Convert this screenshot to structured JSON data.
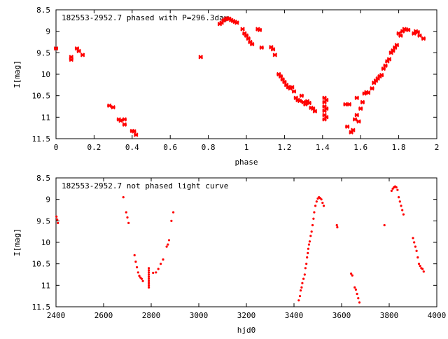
{
  "chart_data": [
    {
      "type": "scatter",
      "title": "182553-2952.7 phased with P=296.3day",
      "xlabel": "phase",
      "ylabel": "I[mag]",
      "xlim": [
        0,
        2
      ],
      "ylim": [
        8.5,
        11.5
      ],
      "y_inverted": true,
      "grid": false,
      "marker": "cross",
      "color": "#ff0000",
      "x_ticks": [
        "0",
        "0.2",
        "0.4",
        "0.6",
        "0.8",
        "1",
        "1.2",
        "1.4",
        "1.6",
        "1.8",
        "2"
      ],
      "y_ticks": [
        "8.5",
        "9",
        "9.5",
        "10",
        "10.5",
        "11",
        "11.5"
      ],
      "points": [
        [
          0.0,
          9.4
        ],
        [
          0.08,
          9.6
        ],
        [
          0.08,
          9.66
        ],
        [
          0.11,
          9.4
        ],
        [
          0.12,
          9.46
        ],
        [
          0.14,
          9.55
        ],
        [
          0.28,
          10.73
        ],
        [
          0.3,
          10.77
        ],
        [
          0.33,
          11.05
        ],
        [
          0.34,
          11.08
        ],
        [
          0.36,
          11.05
        ],
        [
          0.36,
          11.17
        ],
        [
          0.4,
          11.32
        ],
        [
          0.41,
          11.33
        ],
        [
          0.42,
          11.41
        ],
        [
          0.76,
          9.6
        ],
        [
          0.86,
          8.83
        ],
        [
          0.87,
          8.8
        ],
        [
          0.88,
          8.75
        ],
        [
          0.89,
          8.72
        ],
        [
          0.9,
          8.7
        ],
        [
          0.91,
          8.71
        ],
        [
          0.92,
          8.74
        ],
        [
          0.93,
          8.76
        ],
        [
          0.94,
          8.78
        ],
        [
          0.95,
          8.8
        ],
        [
          0.98,
          8.95
        ],
        [
          0.99,
          9.05
        ],
        [
          1.0,
          9.1
        ],
        [
          1.01,
          9.17
        ],
        [
          1.02,
          9.25
        ],
        [
          1.03,
          9.3
        ],
        [
          1.06,
          8.95
        ],
        [
          1.07,
          8.97
        ],
        [
          1.08,
          9.38
        ],
        [
          1.13,
          9.37
        ],
        [
          1.14,
          9.42
        ],
        [
          1.15,
          9.55
        ],
        [
          1.17,
          10.0
        ],
        [
          1.18,
          10.05
        ],
        [
          1.19,
          10.12
        ],
        [
          1.2,
          10.18
        ],
        [
          1.21,
          10.25
        ],
        [
          1.22,
          10.3
        ],
        [
          1.23,
          10.33
        ],
        [
          1.24,
          10.3
        ],
        [
          1.25,
          10.4
        ],
        [
          1.26,
          10.55
        ],
        [
          1.27,
          10.6
        ],
        [
          1.28,
          10.62
        ],
        [
          1.29,
          10.5
        ],
        [
          1.3,
          10.65
        ],
        [
          1.31,
          10.7
        ],
        [
          1.32,
          10.63
        ],
        [
          1.33,
          10.67
        ],
        [
          1.34,
          10.78
        ],
        [
          1.35,
          10.8
        ],
        [
          1.36,
          10.86
        ],
        [
          1.41,
          10.55
        ],
        [
          1.41,
          10.65
        ],
        [
          1.41,
          10.75
        ],
        [
          1.41,
          10.85
        ],
        [
          1.41,
          10.95
        ],
        [
          1.41,
          11.05
        ],
        [
          1.42,
          10.6
        ],
        [
          1.42,
          10.8
        ],
        [
          1.42,
          11.0
        ],
        [
          1.52,
          10.7
        ],
        [
          1.54,
          10.7
        ],
        [
          1.53,
          11.22
        ],
        [
          1.55,
          11.35
        ],
        [
          1.56,
          11.3
        ],
        [
          1.57,
          11.05
        ],
        [
          1.58,
          10.95
        ],
        [
          1.59,
          11.1
        ],
        [
          1.58,
          10.55
        ],
        [
          1.6,
          10.8
        ],
        [
          1.61,
          10.65
        ],
        [
          1.62,
          10.45
        ],
        [
          1.63,
          10.42
        ],
        [
          1.64,
          10.43
        ],
        [
          1.66,
          10.33
        ],
        [
          1.67,
          10.2
        ],
        [
          1.68,
          10.15
        ],
        [
          1.69,
          10.1
        ],
        [
          1.7,
          10.05
        ],
        [
          1.71,
          10.02
        ],
        [
          1.72,
          9.87
        ],
        [
          1.73,
          9.8
        ],
        [
          1.74,
          9.7
        ],
        [
          1.75,
          9.65
        ],
        [
          1.76,
          9.5
        ],
        [
          1.77,
          9.45
        ],
        [
          1.78,
          9.38
        ],
        [
          1.79,
          9.32
        ],
        [
          1.8,
          9.05
        ],
        [
          1.81,
          9.1
        ],
        [
          1.82,
          9.0
        ],
        [
          1.83,
          8.95
        ],
        [
          1.84,
          8.96
        ],
        [
          1.85,
          8.97
        ],
        [
          1.88,
          9.05
        ],
        [
          1.89,
          9.0
        ],
        [
          1.9,
          9.02
        ],
        [
          1.91,
          9.1
        ],
        [
          1.93,
          9.17
        ]
      ]
    },
    {
      "type": "scatter",
      "title": "182553-2952.7 not phased light curve",
      "xlabel": "hjd0",
      "ylabel": "I[mag]",
      "xlim": [
        2400,
        4000
      ],
      "ylim": [
        8.5,
        11.5
      ],
      "y_inverted": true,
      "grid": false,
      "marker": "dot",
      "color": "#ff0000",
      "x_ticks": [
        "2400",
        "2600",
        "2800",
        "3000",
        "3200",
        "3400",
        "3600",
        "3800",
        "4000"
      ],
      "y_ticks": [
        "8.5",
        "9",
        "9.5",
        "10",
        "10.5",
        "11",
        "11.5"
      ],
      "points": [
        [
          2402,
          9.4
        ],
        [
          2405,
          9.47
        ],
        [
          2408,
          9.55
        ],
        [
          2683,
          8.95
        ],
        [
          2695,
          9.3
        ],
        [
          2700,
          9.42
        ],
        [
          2705,
          9.55
        ],
        [
          2730,
          10.3
        ],
        [
          2735,
          10.45
        ],
        [
          2740,
          10.58
        ],
        [
          2745,
          10.7
        ],
        [
          2750,
          10.78
        ],
        [
          2755,
          10.82
        ],
        [
          2760,
          10.85
        ],
        [
          2765,
          10.9
        ],
        [
          2790,
          10.6
        ],
        [
          2790,
          10.65
        ],
        [
          2790,
          10.7
        ],
        [
          2790,
          10.75
        ],
        [
          2790,
          10.8
        ],
        [
          2790,
          10.85
        ],
        [
          2790,
          10.9
        ],
        [
          2790,
          10.95
        ],
        [
          2790,
          11.0
        ],
        [
          2790,
          11.05
        ],
        [
          2808,
          10.71
        ],
        [
          2820,
          10.7
        ],
        [
          2830,
          10.62
        ],
        [
          2840,
          10.5
        ],
        [
          2850,
          10.4
        ],
        [
          2865,
          10.1
        ],
        [
          2870,
          10.05
        ],
        [
          2875,
          9.95
        ],
        [
          2885,
          9.5
        ],
        [
          2893,
          9.3
        ],
        [
          3420,
          11.35
        ],
        [
          3425,
          11.25
        ],
        [
          3428,
          11.12
        ],
        [
          3432,
          11.05
        ],
        [
          3435,
          10.95
        ],
        [
          3440,
          10.85
        ],
        [
          3445,
          10.75
        ],
        [
          3448,
          10.6
        ],
        [
          3452,
          10.5
        ],
        [
          3455,
          10.35
        ],
        [
          3458,
          10.25
        ],
        [
          3460,
          10.15
        ],
        [
          3463,
          10.05
        ],
        [
          3466,
          9.98
        ],
        [
          3470,
          9.85
        ],
        [
          3474,
          9.75
        ],
        [
          3478,
          9.6
        ],
        [
          3482,
          9.45
        ],
        [
          3485,
          9.3
        ],
        [
          3490,
          9.15
        ],
        [
          3495,
          9.05
        ],
        [
          3500,
          8.98
        ],
        [
          3505,
          8.95
        ],
        [
          3510,
          8.97
        ],
        [
          3515,
          9.0
        ],
        [
          3520,
          9.08
        ],
        [
          3525,
          9.15
        ],
        [
          3580,
          9.6
        ],
        [
          3582,
          9.65
        ],
        [
          3640,
          10.73
        ],
        [
          3645,
          10.77
        ],
        [
          3655,
          11.05
        ],
        [
          3660,
          11.1
        ],
        [
          3665,
          11.2
        ],
        [
          3670,
          11.3
        ],
        [
          3675,
          11.4
        ],
        [
          3780,
          9.6
        ],
        [
          3810,
          8.8
        ],
        [
          3815,
          8.75
        ],
        [
          3820,
          8.72
        ],
        [
          3825,
          8.7
        ],
        [
          3830,
          8.72
        ],
        [
          3835,
          8.78
        ],
        [
          3840,
          8.95
        ],
        [
          3845,
          9.05
        ],
        [
          3850,
          9.15
        ],
        [
          3855,
          9.25
        ],
        [
          3860,
          9.35
        ],
        [
          3900,
          9.9
        ],
        [
          3905,
          10.0
        ],
        [
          3910,
          10.1
        ],
        [
          3915,
          10.2
        ],
        [
          3920,
          10.35
        ],
        [
          3925,
          10.5
        ],
        [
          3930,
          10.55
        ],
        [
          3935,
          10.6
        ],
        [
          3940,
          10.62
        ],
        [
          3945,
          10.68
        ]
      ]
    }
  ]
}
